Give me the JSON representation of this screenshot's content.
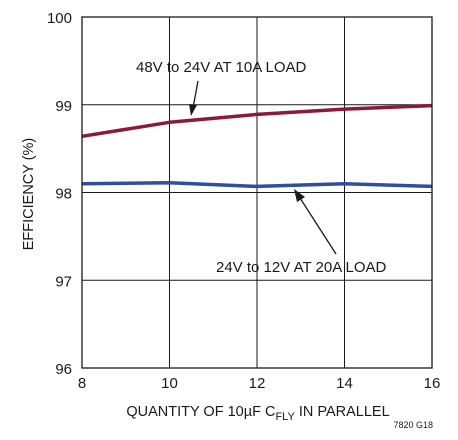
{
  "chart_data": {
    "type": "line",
    "xlabel": {
      "prefix": "QUANTITY OF 10µF C",
      "sub": "FLY",
      "suffix": " IN PARALLEL"
    },
    "ylabel": "EFFICIENCY (%)",
    "xlim": [
      8,
      16
    ],
    "ylim": [
      96,
      100
    ],
    "xticks": [
      "8",
      "10",
      "12",
      "14",
      "16"
    ],
    "yticks": [
      "96",
      "97",
      "98",
      "99",
      "100"
    ],
    "grid": true,
    "legend": "none",
    "series": [
      {
        "name": "48V to 24V AT 10A LOAD",
        "color": "#8b1a3a",
        "x": [
          8,
          10,
          12,
          14,
          16
        ],
        "y": [
          98.64,
          98.8,
          98.89,
          98.95,
          98.99
        ]
      },
      {
        "name": "24V to 12V AT 20A LOAD",
        "color": "#2e4f9e",
        "x": [
          8,
          10,
          12,
          14,
          16
        ],
        "y": [
          98.1,
          98.11,
          98.07,
          98.1,
          98.07
        ]
      }
    ],
    "figure_id": "7820 G18"
  }
}
